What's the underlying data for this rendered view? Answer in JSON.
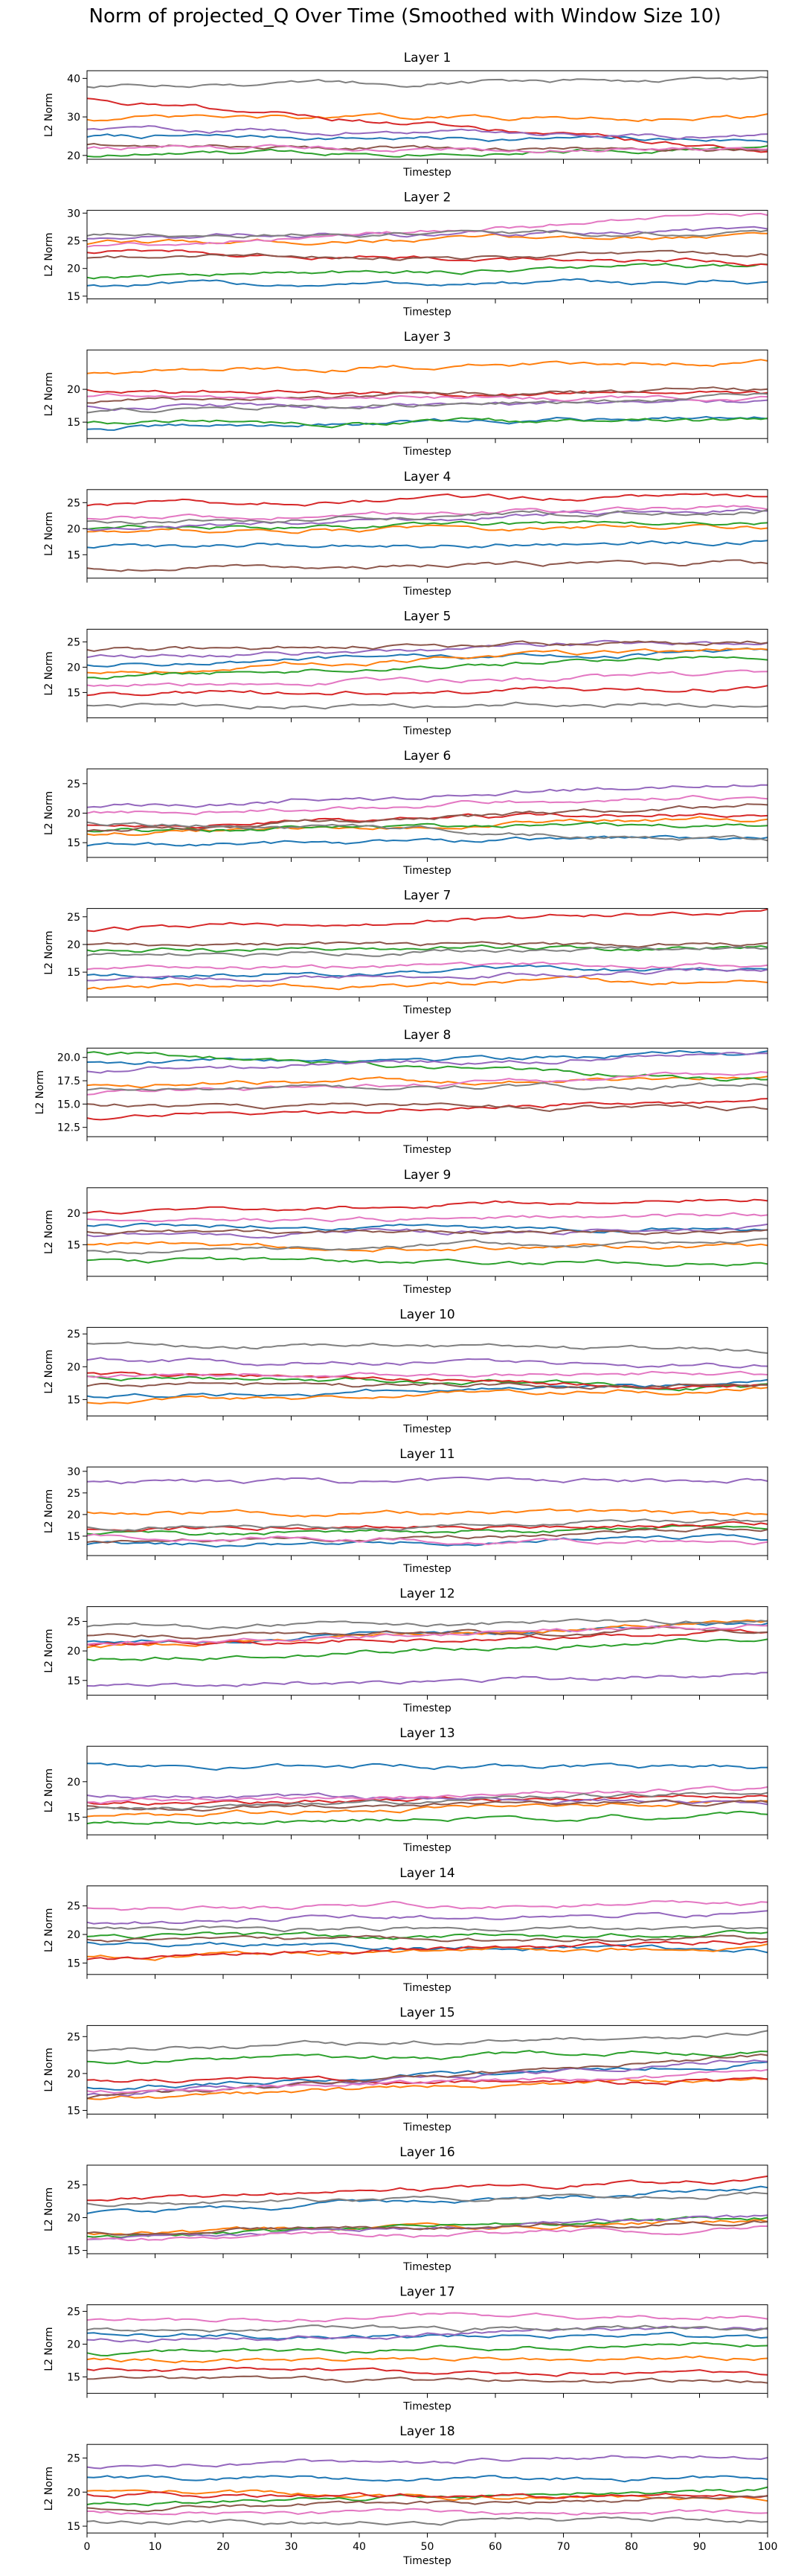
{
  "figure_title": "Norm of projected_Q Over Time (Smoothed with Window Size 10)",
  "series_colors": [
    "#1f77b4",
    "#ff7f0e",
    "#2ca02c",
    "#d62728",
    "#9467bd",
    "#8c564b",
    "#e377c2",
    "#7f7f7f"
  ],
  "chart_data": [
    {
      "type": "line",
      "title": "Layer 1",
      "ylabel": "L2 Norm",
      "xlabel": "Timestep",
      "xlim": [
        0,
        100
      ],
      "ylim": [
        19,
        42
      ],
      "yticks": [
        20,
        30,
        40
      ],
      "ytick_labels": [
        "20",
        "30",
        "40"
      ],
      "series_base": [
        25,
        29.5,
        20,
        35,
        27,
        23,
        22,
        38
      ],
      "series_end": [
        24,
        30,
        22,
        21,
        25,
        21,
        22,
        40
      ]
    },
    {
      "type": "line",
      "title": "Layer 2",
      "ylabel": "L2 Norm",
      "xlabel": "Timestep",
      "xlim": [
        0,
        100
      ],
      "ylim": [
        14.5,
        30.5
      ],
      "yticks": [
        15,
        20,
        25,
        30
      ],
      "ytick_labels": [
        "15",
        "20",
        "25",
        "30"
      ],
      "series_base": [
        17,
        24.5,
        18.5,
        23,
        25.5,
        22,
        24,
        26
      ],
      "series_end": [
        17.5,
        26,
        20.5,
        21,
        27,
        22.5,
        29.5,
        26.5
      ]
    },
    {
      "type": "line",
      "title": "Layer 3",
      "ylabel": "L2 Norm",
      "xlabel": "Timestep",
      "xlim": [
        0,
        100
      ],
      "ylim": [
        12.5,
        26
      ],
      "yticks": [
        15,
        20
      ],
      "ytick_labels": [
        "15",
        "20"
      ],
      "series_base": [
        14,
        22.5,
        15,
        20,
        17.5,
        18,
        19,
        16.5
      ],
      "series_end": [
        16,
        24.5,
        15,
        19,
        18,
        20,
        18.5,
        19
      ]
    },
    {
      "type": "line",
      "title": "Layer 4",
      "ylabel": "L2 Norm",
      "xlabel": "Timestep",
      "xlim": [
        0,
        100
      ],
      "ylim": [
        10.5,
        27.5
      ],
      "yticks": [
        15,
        20,
        25
      ],
      "ytick_labels": [
        "15",
        "20",
        "25"
      ],
      "series_base": [
        16.5,
        19.5,
        20,
        24.5,
        20,
        12.5,
        22,
        21.5
      ],
      "series_end": [
        17.5,
        20.5,
        21.5,
        26.5,
        24,
        13.5,
        24,
        23.5
      ]
    },
    {
      "type": "line",
      "title": "Layer 5",
      "ylabel": "L2 Norm",
      "xlabel": "Timestep",
      "xlim": [
        0,
        100
      ],
      "ylim": [
        10,
        27.5
      ],
      "yticks": [
        15,
        20,
        25
      ],
      "ytick_labels": [
        "15",
        "20",
        "25"
      ],
      "series_base": [
        20.5,
        19,
        18,
        14.5,
        22,
        23.5,
        16.5,
        12.5
      ],
      "series_end": [
        23,
        24,
        22.5,
        16,
        25,
        25,
        18.5,
        13
      ]
    },
    {
      "type": "line",
      "title": "Layer 6",
      "ylabel": "L2 Norm",
      "xlabel": "Timestep",
      "xlim": [
        0,
        100
      ],
      "ylim": [
        12.5,
        27.5
      ],
      "yticks": [
        15,
        20,
        25
      ],
      "ytick_labels": [
        "15",
        "20",
        "25"
      ],
      "series_base": [
        14.5,
        16.5,
        17,
        18,
        21,
        17,
        20,
        18.5
      ],
      "series_end": [
        16,
        19,
        18,
        20,
        25,
        21.5,
        23,
        15.5
      ]
    },
    {
      "type": "line",
      "title": "Layer 7",
      "ylabel": "L2 Norm",
      "xlabel": "Timestep",
      "xlim": [
        0,
        100
      ],
      "ylim": [
        10.5,
        26.5
      ],
      "yticks": [
        15,
        20,
        25
      ],
      "ytick_labels": [
        "15",
        "20",
        "25"
      ],
      "series_base": [
        14.5,
        12,
        19,
        22.5,
        13.5,
        20,
        15.5,
        18
      ],
      "series_end": [
        15.5,
        13.5,
        19.5,
        26,
        15.5,
        20,
        16.5,
        19.5
      ]
    },
    {
      "type": "line",
      "title": "Layer 8",
      "ylabel": "L2 Norm",
      "xlabel": "Timestep",
      "xlim": [
        0,
        100
      ],
      "ylim": [
        11.5,
        21
      ],
      "yticks": [
        12.5,
        15.0,
        17.5,
        20.0
      ],
      "ytick_labels": [
        "12.5",
        "15.0",
        "17.5",
        "20.0"
      ],
      "series_base": [
        19.5,
        17,
        20.5,
        13.5,
        18.5,
        15,
        16,
        16.5
      ],
      "series_end": [
        20.5,
        18,
        17.5,
        15.5,
        20.5,
        14.5,
        18.5,
        17
      ]
    },
    {
      "type": "line",
      "title": "Layer 9",
      "ylabel": "L2 Norm",
      "xlabel": "Timestep",
      "xlim": [
        0,
        100
      ],
      "ylim": [
        10,
        24
      ],
      "yticks": [
        15,
        20
      ],
      "ytick_labels": [
        "15",
        "20"
      ],
      "series_base": [
        18,
        15,
        12.5,
        20,
        16.5,
        17,
        19,
        14
      ],
      "series_end": [
        17.5,
        14.5,
        12,
        22.5,
        17.5,
        17,
        19.5,
        15.5
      ]
    },
    {
      "type": "line",
      "title": "Layer 10",
      "ylabel": "L2 Norm",
      "xlabel": "Timestep",
      "xlim": [
        0,
        100
      ],
      "ylim": [
        12.5,
        26
      ],
      "yticks": [
        15,
        20,
        25
      ],
      "ytick_labels": [
        "15",
        "20",
        "25"
      ],
      "series_base": [
        15.5,
        14.5,
        18.5,
        19,
        21,
        17,
        18.5,
        23.5
      ],
      "series_end": [
        17.5,
        16.5,
        17,
        17,
        20,
        17.5,
        19,
        22.5
      ]
    },
    {
      "type": "line",
      "title": "Layer 11",
      "ylabel": "L2 Norm",
      "xlabel": "Timestep",
      "xlim": [
        0,
        100
      ],
      "ylim": [
        10.5,
        31
      ],
      "yticks": [
        15,
        20,
        25,
        30
      ],
      "ytick_labels": [
        "15",
        "20",
        "25",
        "30"
      ],
      "series_base": [
        13,
        20.5,
        15.5,
        16.5,
        27.5,
        13.5,
        15,
        17
      ],
      "series_end": [
        14.5,
        20,
        17,
        18,
        28,
        16.5,
        13.5,
        18.5
      ]
    },
    {
      "type": "line",
      "title": "Layer 12",
      "ylabel": "L2 Norm",
      "xlabel": "Timestep",
      "xlim": [
        0,
        100
      ],
      "ylim": [
        12.5,
        27.5
      ],
      "yticks": [
        15,
        20,
        25
      ],
      "ytick_labels": [
        "15",
        "20",
        "25"
      ],
      "series_base": [
        21.5,
        20.5,
        18.5,
        21,
        14,
        22.5,
        21,
        24
      ],
      "series_end": [
        24.5,
        25,
        22,
        23,
        16,
        23.5,
        24.5,
        25
      ]
    },
    {
      "type": "line",
      "title": "Layer 13",
      "ylabel": "L2 Norm",
      "xlabel": "Timestep",
      "xlim": [
        0,
        100
      ],
      "ylim": [
        12.5,
        25
      ],
      "yticks": [
        15,
        20
      ],
      "ytick_labels": [
        "15",
        "20"
      ],
      "series_base": [
        22.5,
        15,
        14,
        17,
        18,
        16.5,
        17,
        16
      ],
      "series_end": [
        22,
        17.5,
        15.5,
        18,
        17,
        17,
        19,
        18.5
      ]
    },
    {
      "type": "line",
      "title": "Layer 14",
      "ylabel": "L2 Norm",
      "xlabel": "Timestep",
      "xlim": [
        0,
        100
      ],
      "ylim": [
        13,
        28.5
      ],
      "yticks": [
        15,
        20,
        25
      ],
      "ytick_labels": [
        "15",
        "20",
        "25"
      ],
      "series_base": [
        18.5,
        16,
        19.5,
        15.5,
        22,
        19,
        24.5,
        21
      ],
      "series_end": [
        17,
        18,
        20,
        19,
        24,
        19,
        25.5,
        21
      ]
    },
    {
      "type": "line",
      "title": "Layer 15",
      "ylabel": "L2 Norm",
      "xlabel": "Timestep",
      "xlim": [
        0,
        100
      ],
      "ylim": [
        14.5,
        26.5
      ],
      "yticks": [
        15,
        20,
        25
      ],
      "ytick_labels": [
        "15",
        "20",
        "25"
      ],
      "series_base": [
        18,
        16.5,
        21.5,
        19,
        17,
        16.5,
        17.5,
        23
      ],
      "series_end": [
        21.5,
        19.5,
        23,
        19,
        22,
        22.5,
        20,
        25.5
      ]
    },
    {
      "type": "line",
      "title": "Layer 16",
      "ylabel": "L2 Norm",
      "xlabel": "Timestep",
      "xlim": [
        0,
        100
      ],
      "ylim": [
        14.5,
        28
      ],
      "yticks": [
        15,
        20,
        25
      ],
      "ytick_labels": [
        "15",
        "20",
        "25"
      ],
      "series_base": [
        20.5,
        17.5,
        17,
        22.5,
        16.5,
        17.5,
        16.5,
        22
      ],
      "series_end": [
        24.5,
        19.5,
        20,
        26,
        20,
        19.5,
        18.5,
        23.5
      ]
    },
    {
      "type": "line",
      "title": "Layer 17",
      "ylabel": "L2 Norm",
      "xlabel": "Timestep",
      "xlim": [
        0,
        100
      ],
      "ylim": [
        12.5,
        26
      ],
      "yticks": [
        15,
        20,
        25
      ],
      "ytick_labels": [
        "15",
        "20",
        "25"
      ],
      "series_base": [
        21.5,
        17.5,
        18.5,
        16,
        20.5,
        14.5,
        23.5,
        22
      ],
      "series_end": [
        21,
        18,
        20,
        15.5,
        22.5,
        14.5,
        24.5,
        22.5
      ]
    },
    {
      "type": "line",
      "title": "Layer 18",
      "ylabel": "L2 Norm",
      "xlabel": "Timestep",
      "xlim": [
        0,
        100
      ],
      "ylim": [
        14,
        27
      ],
      "yticks": [
        15,
        20,
        25
      ],
      "ytick_labels": [
        "15",
        "20",
        "25"
      ],
      "series_base": [
        22,
        20,
        18,
        19.5,
        23.5,
        17.5,
        17,
        15.5
      ],
      "series_end": [
        22,
        19,
        20.5,
        19.5,
        25.5,
        19,
        17,
        16
      ],
      "xticks": [
        0,
        10,
        20,
        30,
        40,
        50,
        60,
        70,
        80,
        90,
        100
      ],
      "xtick_labels": [
        "0",
        "10",
        "20",
        "30",
        "40",
        "50",
        "60",
        "70",
        "80",
        "90",
        "100"
      ]
    }
  ]
}
